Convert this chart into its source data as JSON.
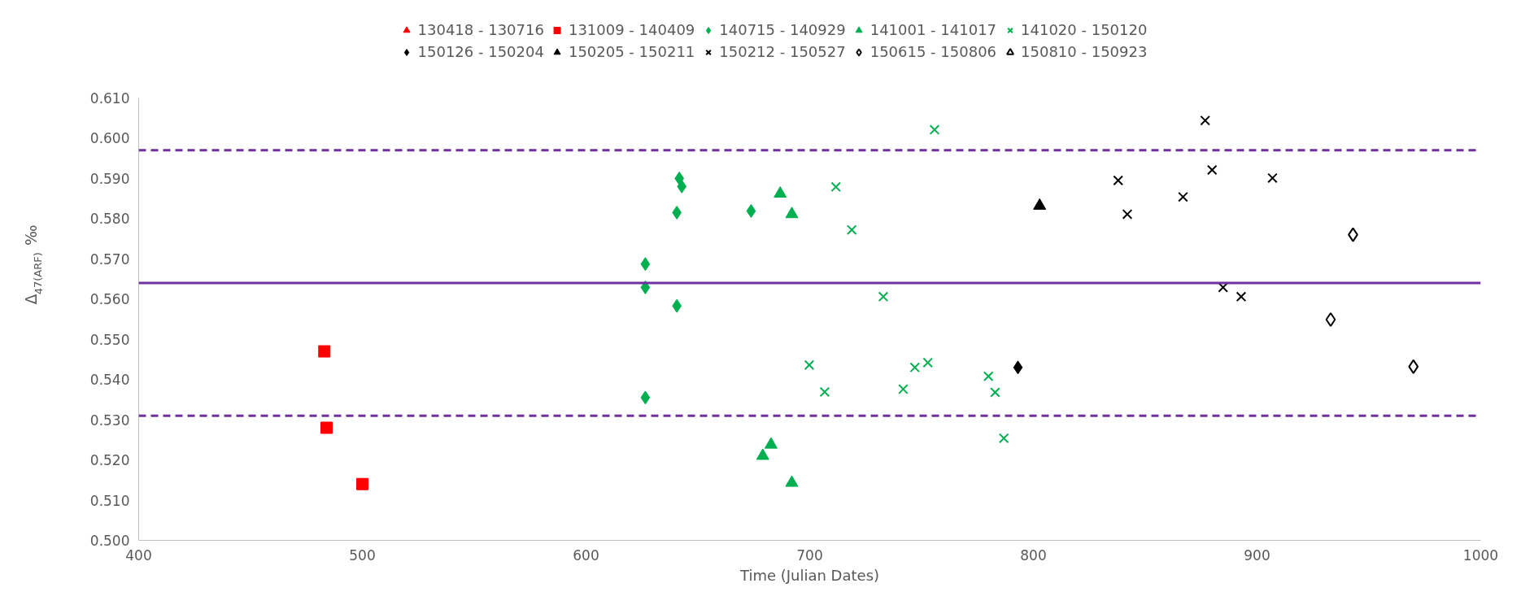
{
  "chart_data": {
    "type": "scatter",
    "xlabel": "Time (Julian Dates)",
    "ylabel": "Δ$_{47(ARF)}$ ‰",
    "xlim": [
      400,
      1000
    ],
    "xticks": [
      400,
      500,
      600,
      700,
      800,
      900,
      1000
    ],
    "ylim": [
      0.5,
      0.61
    ],
    "yticks": [
      {
        "value": 0.5,
        "label": "0.500"
      },
      {
        "value": 0.51,
        "label": "0.510"
      },
      {
        "value": 0.52,
        "label": "0.520"
      },
      {
        "value": 0.53,
        "label": "0.530"
      },
      {
        "value": 0.54,
        "label": "0.540"
      },
      {
        "value": 0.55,
        "label": "0.550"
      },
      {
        "value": 0.56,
        "label": "0.560"
      },
      {
        "value": 0.57,
        "label": "0.570"
      },
      {
        "value": 0.58,
        "label": "0.580"
      },
      {
        "value": 0.59,
        "label": "0.590"
      },
      {
        "value": 0.6,
        "label": "0.600"
      },
      {
        "value": 0.61,
        "label": "0.610"
      }
    ],
    "grid": false,
    "legend": "top",
    "ref_lines": [
      {
        "axis": "y",
        "value": 0.597,
        "color": "#7030a0",
        "line_style": "dashed"
      },
      {
        "axis": "y",
        "value": 0.564,
        "color": "#7030a0",
        "line_style": "solid"
      },
      {
        "axis": "y",
        "value": 0.531,
        "color": "#7030a0",
        "line_style": "dashed"
      }
    ],
    "series": [
      {
        "name": "130418 - 130716",
        "color": "#ff0000",
        "marker": "triangle"
      },
      {
        "name": "131009 - 140409",
        "color": "#ff0000",
        "marker": "square",
        "x": [
          483,
          484,
          500
        ],
        "values": [
          0.547,
          0.528,
          0.514
        ]
      },
      {
        "name": "140715 - 140929",
        "color": "#00b050",
        "marker": "diamond",
        "x": [
          626.5,
          626.5,
          640.6,
          641.7,
          642.8,
          640.6,
          626.5,
          673.8
        ],
        "values": [
          0.5687,
          0.5629,
          0.5815,
          0.59,
          0.588,
          0.5583,
          0.5355,
          0.5819
        ]
      },
      {
        "name": "141001 - 141017",
        "color": "#00b050",
        "marker": "triangle",
        "x": [
          686.8,
          692,
          682.7,
          679,
          692
        ],
        "values": [
          0.5862,
          0.5811,
          0.5238,
          0.521,
          0.5143
        ]
      },
      {
        "name": "141020 - 150120",
        "color": "#00b050",
        "marker": "x",
        "x": [
          755.8,
          711.7,
          718.8,
          732.9,
          699.8,
          706.7,
          741.8,
          747,
          752.8,
          779.9,
          782.9,
          786.8
        ],
        "values": [
          0.6021,
          0.5879,
          0.5772,
          0.5606,
          0.5436,
          0.5369,
          0.5376,
          0.543,
          0.5442,
          0.5408,
          0.5368,
          0.5254
        ]
      },
      {
        "name": "150126 - 150204",
        "color": "#000000",
        "marker": "diamond",
        "x": [
          793.1
        ],
        "values": [
          0.543
        ]
      },
      {
        "name": "150205 - 150211",
        "color": "#000000",
        "marker": "triangle",
        "x": [
          802.8
        ],
        "values": [
          0.5832
        ]
      },
      {
        "name": "150212 - 150527",
        "color": "#000000",
        "marker": "x",
        "x": [
          876.8,
          837.9,
          842,
          866.9,
          879.9,
          906.9,
          884.8,
          892.9
        ],
        "values": [
          0.6044,
          0.5895,
          0.5811,
          0.5854,
          0.5921,
          0.5901,
          0.5629,
          0.5606
        ]
      },
      {
        "name": "150615 - 150806",
        "color": "#000000",
        "marker": "diamond_open",
        "x": [
          942.9,
          932.9,
          969.9
        ],
        "values": [
          0.576,
          0.5549,
          0.5432
        ]
      },
      {
        "name": "150810 - 150923",
        "color": "#000000",
        "marker": "triangle_open"
      }
    ]
  }
}
